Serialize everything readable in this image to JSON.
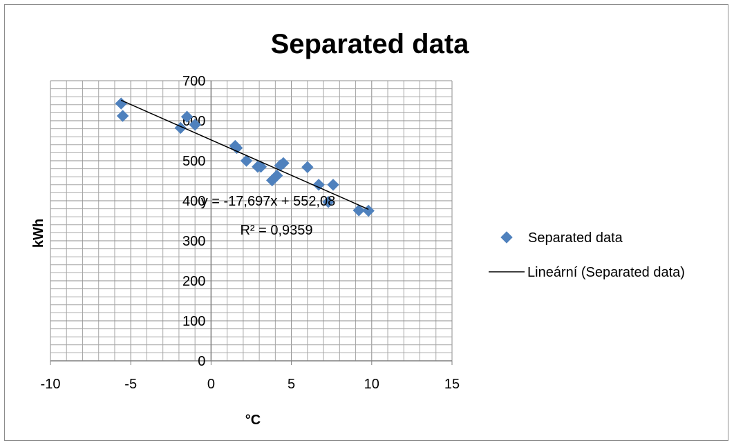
{
  "chart_data": {
    "type": "scatter",
    "title": "Separated data",
    "xlabel": "°C",
    "ylabel": "kWh",
    "xlim": [
      -10,
      15
    ],
    "ylim": [
      0,
      700
    ],
    "x_ticks": [
      "-10",
      "-5",
      "0",
      "5",
      "10",
      "15"
    ],
    "y_ticks": [
      "0",
      "100",
      "200",
      "300",
      "400",
      "500",
      "600",
      "700"
    ],
    "grid": true,
    "legend_position": "right",
    "series": [
      {
        "name": "Separated data",
        "marker": "diamond",
        "color": "#4f81bd",
        "points": [
          {
            "x": -5.6,
            "y": 643
          },
          {
            "x": -5.5,
            "y": 612
          },
          {
            "x": -1.9,
            "y": 582
          },
          {
            "x": -1.5,
            "y": 610
          },
          {
            "x": -1.0,
            "y": 590
          },
          {
            "x": 1.5,
            "y": 537
          },
          {
            "x": 1.6,
            "y": 532
          },
          {
            "x": 2.2,
            "y": 500
          },
          {
            "x": 2.9,
            "y": 485
          },
          {
            "x": 3.1,
            "y": 485
          },
          {
            "x": 3.8,
            "y": 451
          },
          {
            "x": 4.1,
            "y": 463
          },
          {
            "x": 4.3,
            "y": 488
          },
          {
            "x": 4.5,
            "y": 494
          },
          {
            "x": 6.0,
            "y": 484
          },
          {
            "x": 6.7,
            "y": 440
          },
          {
            "x": 7.3,
            "y": 397
          },
          {
            "x": 7.6,
            "y": 440
          },
          {
            "x": 9.2,
            "y": 376
          },
          {
            "x": 9.8,
            "y": 375
          }
        ]
      }
    ],
    "trendline": {
      "name": "Lineární (Separated data)",
      "color": "#000000",
      "slope": -17.697,
      "intercept": 552.08,
      "x_range": [
        -5.6,
        9.8
      ],
      "equation_label": "y = -17,697x + 552,08",
      "r2_label": "R² = 0,9359"
    }
  }
}
